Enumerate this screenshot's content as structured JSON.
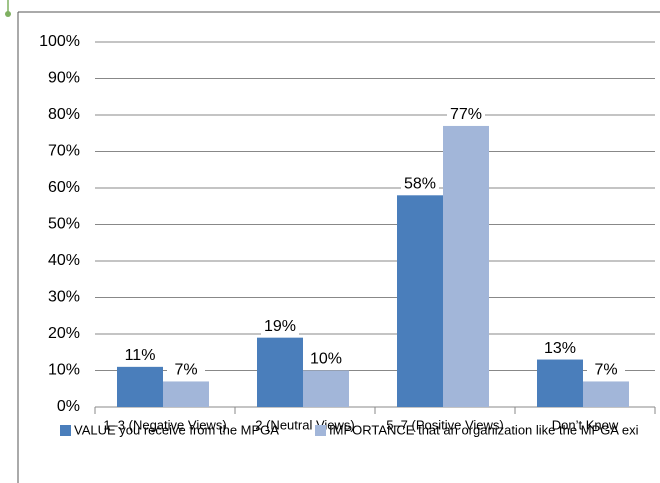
{
  "chart_data": {
    "type": "bar",
    "categories": [
      "1–3 (Negative Views)",
      "2 (Neutral Views)",
      "5–7 (Positive Views)",
      "Don’t Know"
    ],
    "series": [
      {
        "name": "VALUE you receive from the MPGA",
        "color": "#4a7ebb",
        "values": [
          11,
          19,
          58,
          13
        ],
        "value_labels": [
          "11%",
          "19%",
          "58%",
          "13%"
        ]
      },
      {
        "name": "IMPORTANCE that an organization like the MPGA exi",
        "color": "#a2b6d9",
        "values": [
          7,
          10,
          77,
          7
        ],
        "value_labels": [
          "7%",
          "10%",
          "77%",
          "7%"
        ]
      }
    ],
    "ylim": [
      0,
      100
    ],
    "yticks": [
      {
        "value": 0,
        "label": "0%"
      },
      {
        "value": 10,
        "label": "10%"
      },
      {
        "value": 20,
        "label": "20%"
      },
      {
        "value": 30,
        "label": "30%"
      },
      {
        "value": 40,
        "label": "40%"
      },
      {
        "value": 50,
        "label": "50%"
      },
      {
        "value": 60,
        "label": "60%"
      },
      {
        "value": 70,
        "label": "70%"
      },
      {
        "value": 80,
        "label": "80%"
      },
      {
        "value": 90,
        "label": "90%"
      },
      {
        "value": 100,
        "label": "100%"
      }
    ],
    "grid": true,
    "legend": "bottom"
  }
}
